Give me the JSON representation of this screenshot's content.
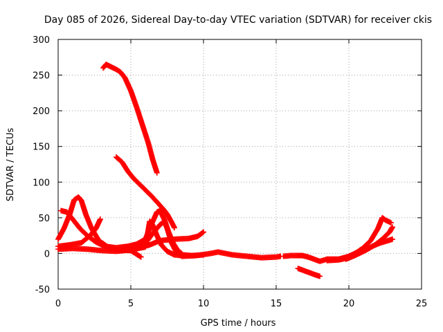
{
  "chart_data": {
    "type": "line",
    "title": "Day 085 of 2026, Sidereal Day-to-day VTEC variation (SDTVAR) for receiver ckis",
    "xlabel": "GPS time / hours",
    "ylabel": "SDTVAR / TECUs",
    "xlim": [
      0,
      25
    ],
    "ylim": [
      -50,
      300
    ],
    "x_ticks": [
      "0",
      "5",
      "10",
      "15",
      "20",
      "25"
    ],
    "y_ticks": [
      "-50",
      "0",
      "50",
      "100",
      "150",
      "200",
      "250",
      "300"
    ],
    "grid": true,
    "legend": "none",
    "marker": "plus",
    "color": "#ff0000",
    "series": [
      {
        "points": [
          [
            3.1,
            260
          ],
          [
            3.3,
            265
          ],
          [
            3.6,
            262
          ],
          [
            4.0,
            258
          ],
          [
            4.3,
            254
          ],
          [
            4.6,
            246
          ],
          [
            5.0,
            228
          ],
          [
            5.4,
            205
          ],
          [
            5.8,
            180
          ],
          [
            6.2,
            155
          ],
          [
            6.5,
            132
          ],
          [
            6.8,
            113
          ]
        ]
      },
      {
        "points": [
          [
            4.0,
            135
          ],
          [
            4.4,
            128
          ],
          [
            4.8,
            115
          ],
          [
            5.2,
            105
          ],
          [
            5.6,
            97
          ],
          [
            6.0,
            89
          ],
          [
            6.4,
            81
          ],
          [
            6.8,
            72
          ],
          [
            7.2,
            63
          ],
          [
            7.5,
            55
          ],
          [
            7.8,
            44
          ],
          [
            8.0,
            36
          ]
        ]
      },
      {
        "points": [
          [
            0.0,
            20
          ],
          [
            0.4,
            35
          ],
          [
            0.8,
            55
          ],
          [
            1.1,
            75
          ],
          [
            1.4,
            79
          ],
          [
            1.6,
            74
          ],
          [
            1.9,
            55
          ],
          [
            2.3,
            35
          ],
          [
            2.8,
            18
          ],
          [
            3.5,
            8
          ],
          [
            4.2,
            5
          ],
          [
            5.0,
            4
          ],
          [
            5.7,
            -5
          ]
        ]
      },
      {
        "points": [
          [
            0.2,
            60
          ],
          [
            0.6,
            58
          ],
          [
            1.0,
            48
          ],
          [
            1.5,
            35
          ],
          [
            2.0,
            25
          ],
          [
            2.6,
            16
          ],
          [
            3.2,
            10
          ],
          [
            4.0,
            8
          ],
          [
            4.8,
            10
          ],
          [
            5.4,
            13
          ],
          [
            6.0,
            20
          ],
          [
            6.4,
            40
          ],
          [
            6.8,
            58
          ],
          [
            7.0,
            60
          ],
          [
            7.3,
            48
          ],
          [
            7.6,
            30
          ],
          [
            7.9,
            15
          ],
          [
            8.2,
            5
          ],
          [
            8.6,
            -2
          ],
          [
            9.2,
            -3
          ],
          [
            10.0,
            -2
          ]
        ]
      },
      {
        "points": [
          [
            0.0,
            10
          ],
          [
            0.8,
            12
          ],
          [
            1.6,
            15
          ],
          [
            2.2,
            25
          ],
          [
            2.6,
            35
          ],
          [
            2.9,
            48
          ]
        ]
      },
      {
        "points": [
          [
            0.0,
            6
          ],
          [
            1.0,
            7
          ],
          [
            2.0,
            6
          ],
          [
            3.0,
            4
          ],
          [
            4.0,
            3
          ],
          [
            5.0,
            5
          ],
          [
            6.0,
            9
          ],
          [
            6.3,
            45
          ],
          [
            6.5,
            40
          ],
          [
            6.8,
            25
          ],
          [
            7.1,
            12
          ],
          [
            7.5,
            3
          ],
          [
            8.0,
            -2
          ],
          [
            8.5,
            -3
          ]
        ]
      },
      {
        "points": [
          [
            5.0,
            6
          ],
          [
            5.6,
            8
          ],
          [
            6.3,
            12
          ],
          [
            7.0,
            18
          ],
          [
            8.0,
            20
          ],
          [
            9.0,
            21
          ],
          [
            9.6,
            24
          ],
          [
            10.0,
            30
          ]
        ]
      },
      {
        "points": [
          [
            5.5,
            8
          ],
          [
            6.0,
            14
          ],
          [
            6.5,
            28
          ],
          [
            7.0,
            40
          ],
          [
            7.3,
            45
          ],
          [
            7.5,
            35
          ],
          [
            7.8,
            15
          ],
          [
            8.1,
            3
          ],
          [
            8.5,
            -3
          ]
        ]
      },
      {
        "points": [
          [
            8.5,
            -4
          ],
          [
            9.5,
            -3
          ],
          [
            10.5,
            0
          ],
          [
            11.0,
            2
          ],
          [
            12.0,
            -2
          ],
          [
            13.0,
            -4
          ],
          [
            14.0,
            -6
          ],
          [
            15.0,
            -5
          ],
          [
            15.3,
            -4
          ]
        ]
      },
      {
        "points": [
          [
            15.5,
            -4
          ],
          [
            16.0,
            -3
          ],
          [
            16.8,
            -3
          ],
          [
            17.2,
            -5
          ],
          [
            17.6,
            -8
          ],
          [
            18.0,
            -11
          ],
          [
            18.5,
            -8
          ],
          [
            19.3,
            -8
          ],
          [
            20.0,
            -4
          ],
          [
            20.5,
            1
          ],
          [
            21.0,
            8
          ],
          [
            21.5,
            18
          ],
          [
            22.0,
            35
          ],
          [
            22.3,
            50
          ],
          [
            22.5,
            47
          ],
          [
            22.9,
            43
          ]
        ]
      },
      {
        "points": [
          [
            18.5,
            -10
          ],
          [
            19.3,
            -9
          ],
          [
            20.0,
            -6
          ],
          [
            20.6,
            -1
          ],
          [
            21.2,
            5
          ],
          [
            21.8,
            12
          ],
          [
            22.3,
            20
          ],
          [
            22.8,
            30
          ],
          [
            23.0,
            37
          ]
        ]
      },
      {
        "points": [
          [
            19.8,
            -8
          ],
          [
            20.4,
            -3
          ],
          [
            21.0,
            3
          ],
          [
            21.6,
            10
          ],
          [
            22.2,
            15
          ],
          [
            22.7,
            18
          ],
          [
            23.0,
            20
          ]
        ]
      },
      {
        "points": [
          [
            16.5,
            -21
          ],
          [
            16.9,
            -24
          ],
          [
            17.3,
            -27
          ],
          [
            17.7,
            -30
          ],
          [
            18.0,
            -32
          ]
        ]
      }
    ]
  }
}
